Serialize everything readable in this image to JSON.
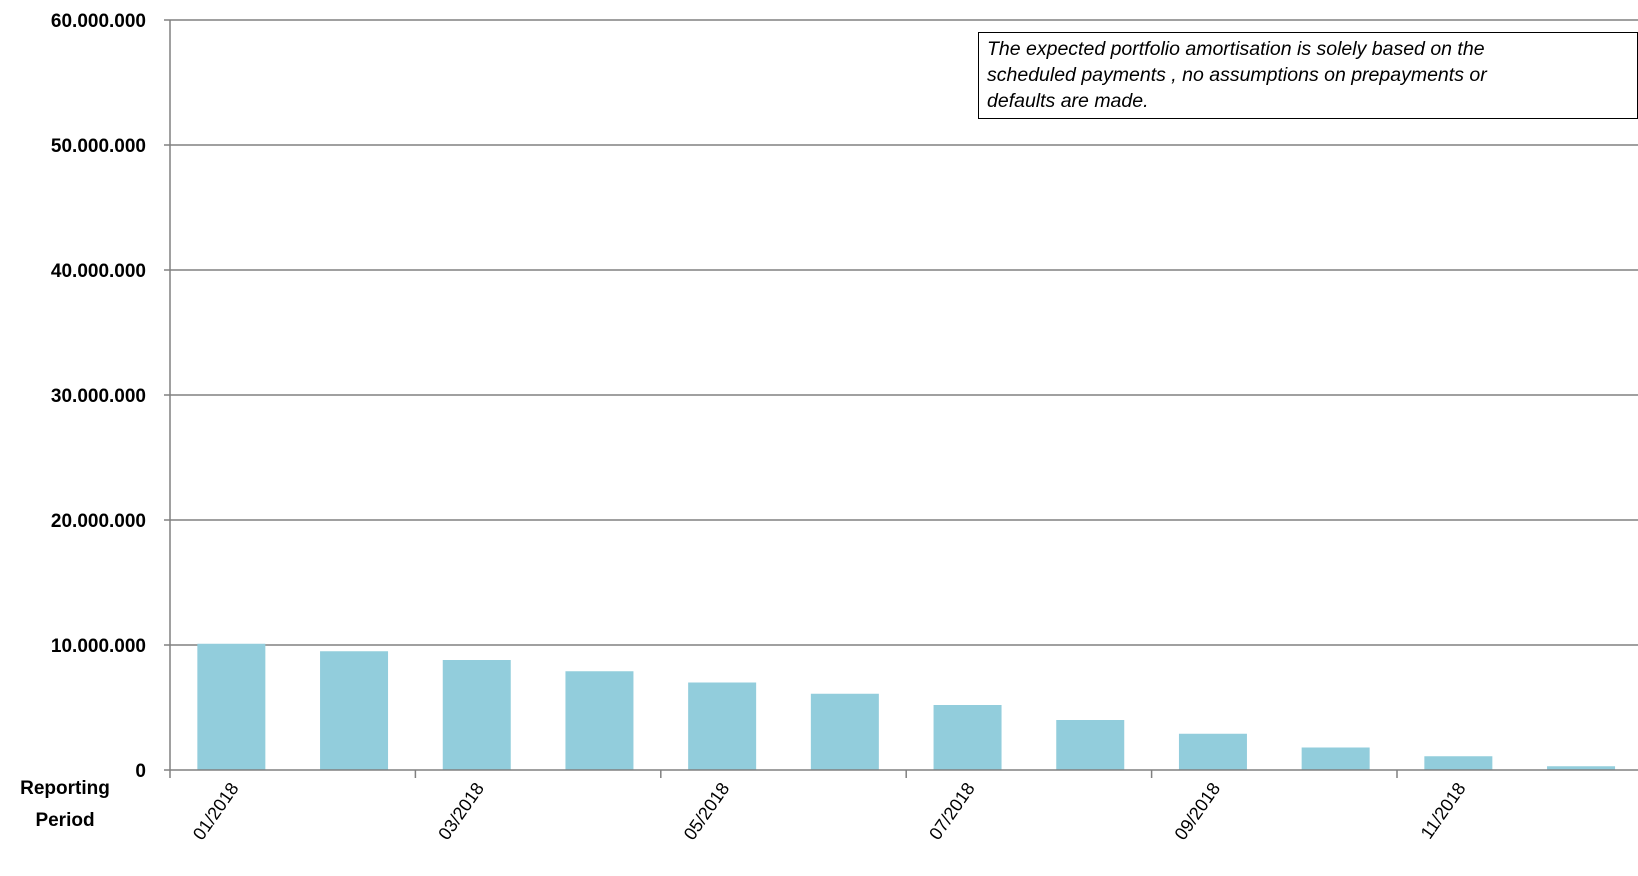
{
  "chart_data": {
    "type": "bar",
    "xlabel": "Reporting Period",
    "xlabel_lines": [
      "Reporting",
      "Period"
    ],
    "ylabel": "",
    "ylim": [
      0,
      60000000
    ],
    "yticks": [
      {
        "value": 0,
        "label": "0"
      },
      {
        "value": 10000000,
        "label": "10.000.000"
      },
      {
        "value": 20000000,
        "label": "20.000.000"
      },
      {
        "value": 30000000,
        "label": "30.000.000"
      },
      {
        "value": 40000000,
        "label": "40.000.000"
      },
      {
        "value": 50000000,
        "label": "50.000.000"
      },
      {
        "value": 60000000,
        "label": "60.000.000"
      }
    ],
    "grid": true,
    "bar_color": "#92CDDC",
    "categories": [
      "01/2018",
      "02/2018",
      "03/2018",
      "04/2018",
      "05/2018",
      "06/2018",
      "07/2018",
      "08/2018",
      "09/2018",
      "10/2018",
      "11/2018",
      "12/2018"
    ],
    "shown_category_labels": [
      "01/2018",
      "03/2018",
      "05/2018",
      "07/2018",
      "09/2018",
      "11/2018"
    ],
    "values": [
      10100000,
      9500000,
      8800000,
      7900000,
      7000000,
      6100000,
      5200000,
      4000000,
      2900000,
      1800000,
      1100000,
      300000
    ],
    "annotation": "The expected portfolio amortisation is solely based on the\nscheduled payments , no assumptions on prepayments or\ndefaults are made."
  }
}
